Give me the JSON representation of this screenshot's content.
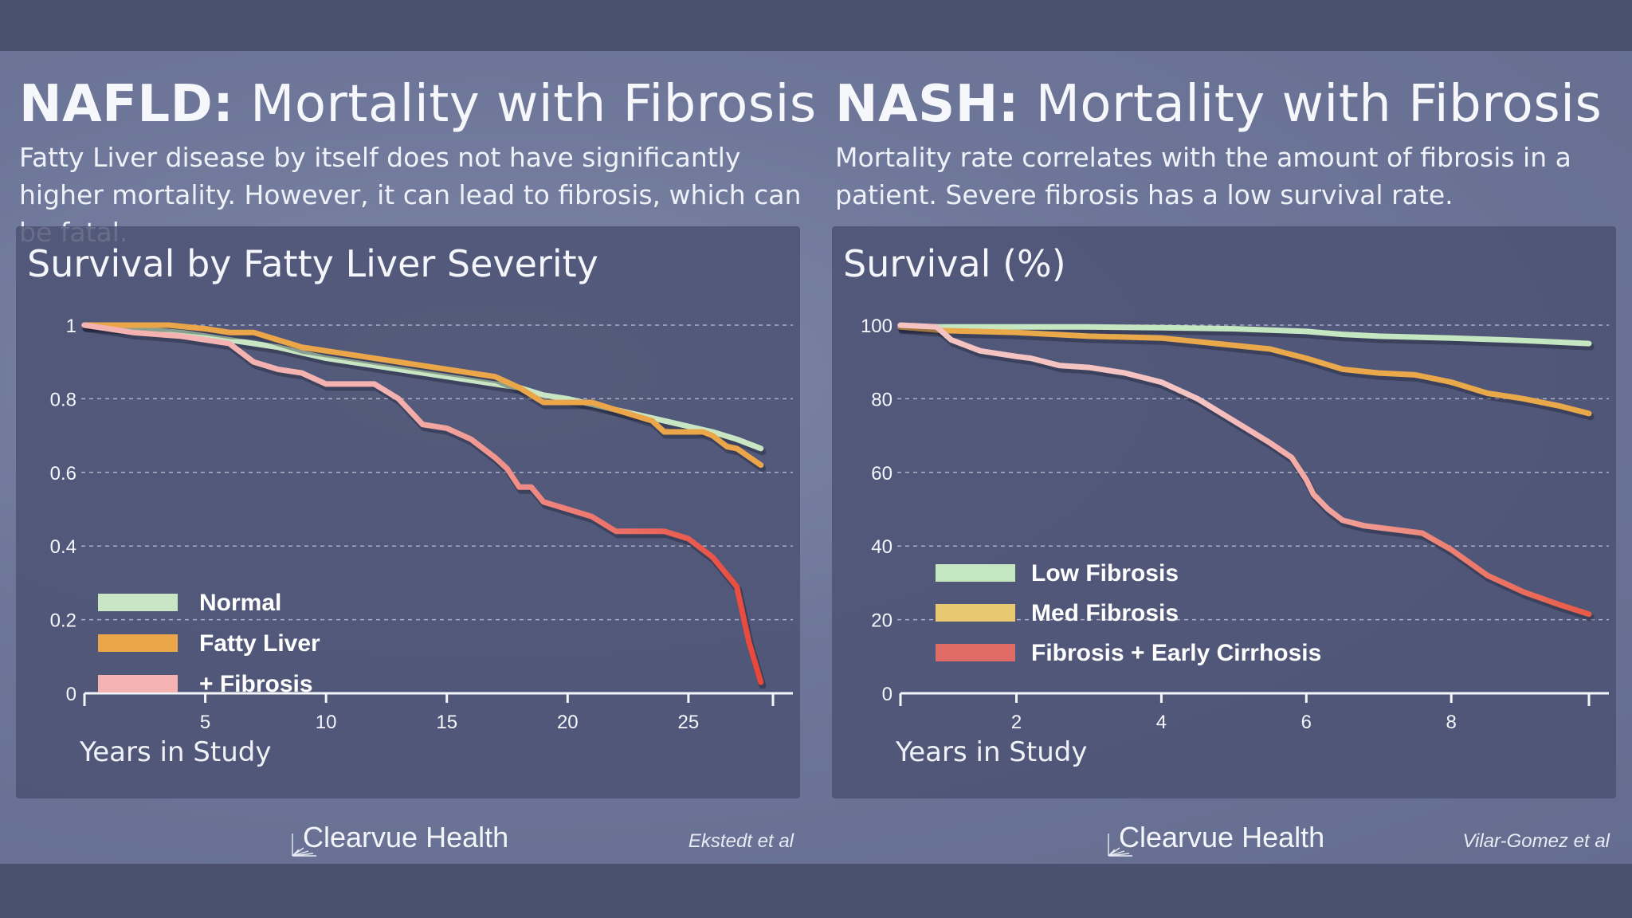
{
  "colors": {
    "normal": "#c8e6c3",
    "fatty": "#eca64a",
    "fibrosis_light": "#f4b3b0",
    "fibrosis_dark": "#e8473a",
    "low": "#c4e6c0",
    "med": "#e9a84a",
    "cirrhosis_light": "#f6c3c3",
    "cirrhosis_dark": "#e85a45",
    "legend_med": "#e8c870",
    "legend_red": "#e06a66"
  },
  "panels": [
    {
      "title_bold": "NAFLD:",
      "title_rest": " Mortality with Fibrosis",
      "subtitle": "Fatty Liver disease by itself does not have significantly higher mortality. However, it can lead to fibrosis, which can be fatal.",
      "card_title": "Survival by Fatty Liver Severity",
      "xlabel": "Years in Study",
      "brand": "Clearvue Health",
      "citation": "Ekstedt et al"
    },
    {
      "title_bold": "NASH:",
      "title_rest": " Mortality with Fibrosis",
      "subtitle": "Mortality rate correlates with the amount of fibrosis in a patient. Severe fibrosis has a low survival rate.",
      "card_title": "Survival (%)",
      "xlabel": "Years in Study",
      "brand": "Clearvue Health",
      "citation": "Vilar-Gomez et al"
    }
  ],
  "chart_data": [
    {
      "type": "line",
      "title": "Survival by Fatty Liver Severity",
      "xlabel": "Years in Study",
      "ylabel": "",
      "xlim": [
        0,
        28.5
      ],
      "ylim": [
        0,
        1
      ],
      "xticks": [
        5,
        10,
        15,
        20,
        25
      ],
      "xtick_labels": [
        "5",
        "10",
        "15",
        "20",
        "25"
      ],
      "yticks": [
        0,
        0.2,
        0.4,
        0.6,
        0.8,
        1
      ],
      "ytick_labels": [
        "0",
        "0.2",
        "0.4",
        "0.6",
        "0.8",
        "1"
      ],
      "grid": "horizontal dashed",
      "legend_position": "bottom-left",
      "series": [
        {
          "name": "Normal",
          "color_key": "normal",
          "x": [
            0,
            2,
            4,
            6,
            8,
            10,
            12,
            14,
            16,
            18,
            19,
            20,
            22,
            24,
            26,
            27,
            28
          ],
          "y": [
            1,
            0.99,
            0.98,
            0.96,
            0.94,
            0.91,
            0.89,
            0.87,
            0.85,
            0.83,
            0.81,
            0.8,
            0.77,
            0.74,
            0.71,
            0.69,
            0.665
          ]
        },
        {
          "name": "Fatty Liver",
          "color_key": "fatty",
          "x": [
            0,
            2,
            3.5,
            5,
            6,
            7,
            8,
            9,
            10,
            12,
            14,
            15,
            17,
            18,
            19,
            20,
            21,
            22,
            23.5,
            24,
            25,
            25.6,
            26,
            26.6,
            27,
            28
          ],
          "y": [
            1,
            1,
            1,
            0.99,
            0.98,
            0.98,
            0.96,
            0.94,
            0.93,
            0.91,
            0.89,
            0.88,
            0.86,
            0.83,
            0.79,
            0.79,
            0.79,
            0.77,
            0.74,
            0.71,
            0.71,
            0.71,
            0.7,
            0.67,
            0.665,
            0.62
          ]
        },
        {
          "name": "+ Fibrosis",
          "color_key": "fibrosis",
          "x": [
            0,
            2,
            4,
            6,
            7,
            8,
            9,
            10,
            11,
            12,
            13,
            14,
            15,
            16,
            17,
            17.5,
            18,
            18.5,
            19,
            20,
            21,
            22,
            23,
            24,
            25,
            26,
            26.5,
            27,
            27.5,
            28
          ],
          "y": [
            1,
            0.98,
            0.97,
            0.95,
            0.9,
            0.88,
            0.87,
            0.84,
            0.84,
            0.84,
            0.8,
            0.73,
            0.72,
            0.69,
            0.64,
            0.61,
            0.56,
            0.56,
            0.52,
            0.5,
            0.48,
            0.44,
            0.44,
            0.44,
            0.42,
            0.37,
            0.33,
            0.29,
            0.14,
            0.03
          ]
        }
      ]
    },
    {
      "type": "line",
      "title": "Survival (%)",
      "xlabel": "Years in Study",
      "ylabel": "",
      "xlim": [
        0.4,
        9.9
      ],
      "ylim": [
        0,
        100
      ],
      "xticks": [
        2,
        4,
        6,
        8
      ],
      "xtick_labels": [
        "2",
        "4",
        "6",
        "8"
      ],
      "yticks": [
        0,
        20,
        40,
        60,
        80,
        100
      ],
      "ytick_labels": [
        "0",
        "20",
        "40",
        "60",
        "80",
        "100"
      ],
      "grid": "horizontal dashed",
      "legend_position": "bottom-left",
      "series": [
        {
          "name": "Low Fibrosis",
          "color_key": "low",
          "x": [
            0.4,
            1,
            2,
            3,
            4,
            5,
            6,
            6.5,
            7,
            8,
            9,
            9.9
          ],
          "y": [
            99.5,
            99.5,
            99.5,
            99.5,
            99.3,
            99,
            98.3,
            97.5,
            97,
            96.5,
            95.8,
            95
          ]
        },
        {
          "name": "Med Fibrosis",
          "color_key": "med",
          "x": [
            0.4,
            1,
            2,
            3,
            4,
            5,
            5.5,
            6,
            6.5,
            7,
            7.5,
            8,
            8.5,
            9,
            9.5,
            9.9
          ],
          "y": [
            99.5,
            98.5,
            98,
            97,
            96.5,
            94.5,
            93.5,
            91,
            88,
            87,
            86.5,
            84.5,
            81.5,
            80,
            78,
            76
          ]
        },
        {
          "name": "Fibrosis + Early Cirrhosis",
          "color_key": "cirrhosis",
          "x": [
            0.4,
            0.9,
            1.1,
            1.5,
            2,
            2.2,
            2.6,
            3,
            3.5,
            4,
            4.5,
            5,
            5.5,
            5.8,
            6,
            6.1,
            6.3,
            6.5,
            6.8,
            7.2,
            7.6,
            8,
            8.5,
            9,
            9.5,
            9.9
          ],
          "y": [
            100,
            99.5,
            96,
            93,
            91.5,
            91,
            89,
            88.5,
            87,
            84.5,
            80,
            74,
            68,
            64,
            58,
            54,
            50,
            47,
            45.5,
            44.5,
            43.5,
            39,
            32,
            27.5,
            24,
            21.5
          ]
        }
      ]
    }
  ]
}
